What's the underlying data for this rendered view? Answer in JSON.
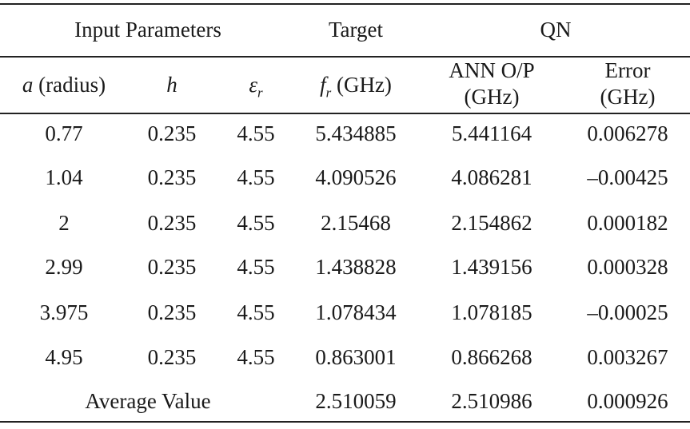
{
  "header": {
    "group_input": "Input Parameters",
    "group_target": "Target",
    "group_qn": "QN",
    "col_a_symbol": "a",
    "col_a_suffix": " (radius)",
    "col_h": "h",
    "col_er_base": "ε",
    "col_er_sub": "r",
    "col_fr_base": "f",
    "col_fr_sub": "r",
    "col_fr_suffix": " (GHz)",
    "col_ann_line1": "ANN O/P",
    "col_ann_line2": "(GHz)",
    "col_err_line1": "Error",
    "col_err_line2": "(GHz)"
  },
  "rows": [
    {
      "a": "0.77",
      "h": "0.235",
      "er": "4.55",
      "fr": "5.434885",
      "ann": "5.441164",
      "err": "0.006278"
    },
    {
      "a": "1.04",
      "h": "0.235",
      "er": "4.55",
      "fr": "4.090526",
      "ann": "4.086281",
      "err": "–0.00425"
    },
    {
      "a": "2",
      "h": "0.235",
      "er": "4.55",
      "fr": "2.15468",
      "ann": "2.154862",
      "err": "0.000182"
    },
    {
      "a": "2.99",
      "h": "0.235",
      "er": "4.55",
      "fr": "1.438828",
      "ann": "1.439156",
      "err": "0.000328"
    },
    {
      "a": "3.975",
      "h": "0.235",
      "er": "4.55",
      "fr": "1.078434",
      "ann": "1.078185",
      "err": "–0.00025"
    },
    {
      "a": "4.95",
      "h": "0.235",
      "er": "4.55",
      "fr": "0.863001",
      "ann": "0.866268",
      "err": "0.003267"
    }
  ],
  "average": {
    "label": "Average Value",
    "fr": "2.510059",
    "ann": "2.510986",
    "err": "0.000926"
  }
}
